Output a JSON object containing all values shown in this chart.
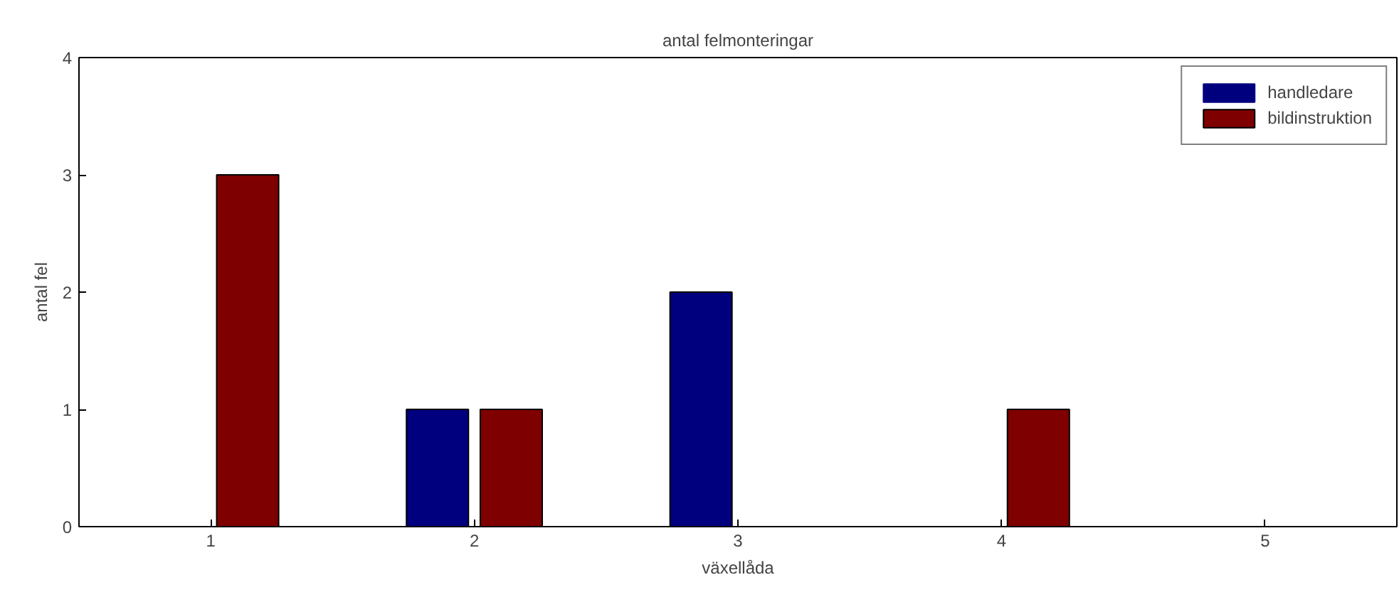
{
  "chart_data": {
    "type": "bar",
    "title": "antal felmonteringar",
    "xlabel": "växellåda",
    "ylabel": "antal fel",
    "x": [
      1,
      2,
      3,
      4,
      5
    ],
    "xlim": [
      0.5,
      5.5
    ],
    "xticks": [
      1,
      2,
      3,
      4,
      5
    ],
    "ylim": [
      0,
      4
    ],
    "yticks": [
      0,
      1,
      2,
      3,
      4
    ],
    "grid": false,
    "legend": "top right",
    "series": [
      {
        "name": "handledare",
        "color": "#00007f",
        "values": [
          0,
          1,
          2,
          0,
          0
        ]
      },
      {
        "name": "bildinstruktion",
        "color": "#7f0000",
        "values": [
          3,
          1,
          0,
          1,
          0
        ]
      }
    ]
  }
}
